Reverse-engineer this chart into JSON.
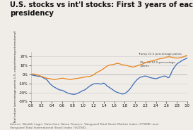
{
  "title": "U.S. stocks vs int'l stocks: First 3 years of each\npresidency",
  "source_note": "Source: Wealth Logic; Data from Yahoo Finance: Vanguard Total Stock Market Index (VTSME) and\nVanguard Total International Stock Index (VGTSX).",
  "ylabel": "Total return (percentage points U.S. outperforming international)",
  "xlim": [
    0.0,
    3.0
  ],
  "ylim": [
    -30,
    25
  ],
  "yticks": [
    -30,
    -20,
    -10,
    0,
    10,
    20
  ],
  "xticks": [
    0.0,
    0.2,
    0.4,
    0.6,
    0.8,
    1.0,
    1.2,
    1.4,
    1.6,
    1.8,
    2.0,
    2.2,
    2.4,
    2.6,
    2.8,
    3.0
  ],
  "trump_color": "#E8821A",
  "obama_color": "#3A6AB5",
  "trump_label": "Trump 21.5 percentage points",
  "obama_label": "Obama 10.0 percentage\npoints",
  "background_color": "#f0ede8",
  "grid_color": "#cccccc",
  "title_fontsize": 7.2,
  "note_fontsize": 3.2,
  "ylabel_fontsize": 3.0,
  "tick_fontsize": 3.5,
  "annot_fontsize": 3.0
}
